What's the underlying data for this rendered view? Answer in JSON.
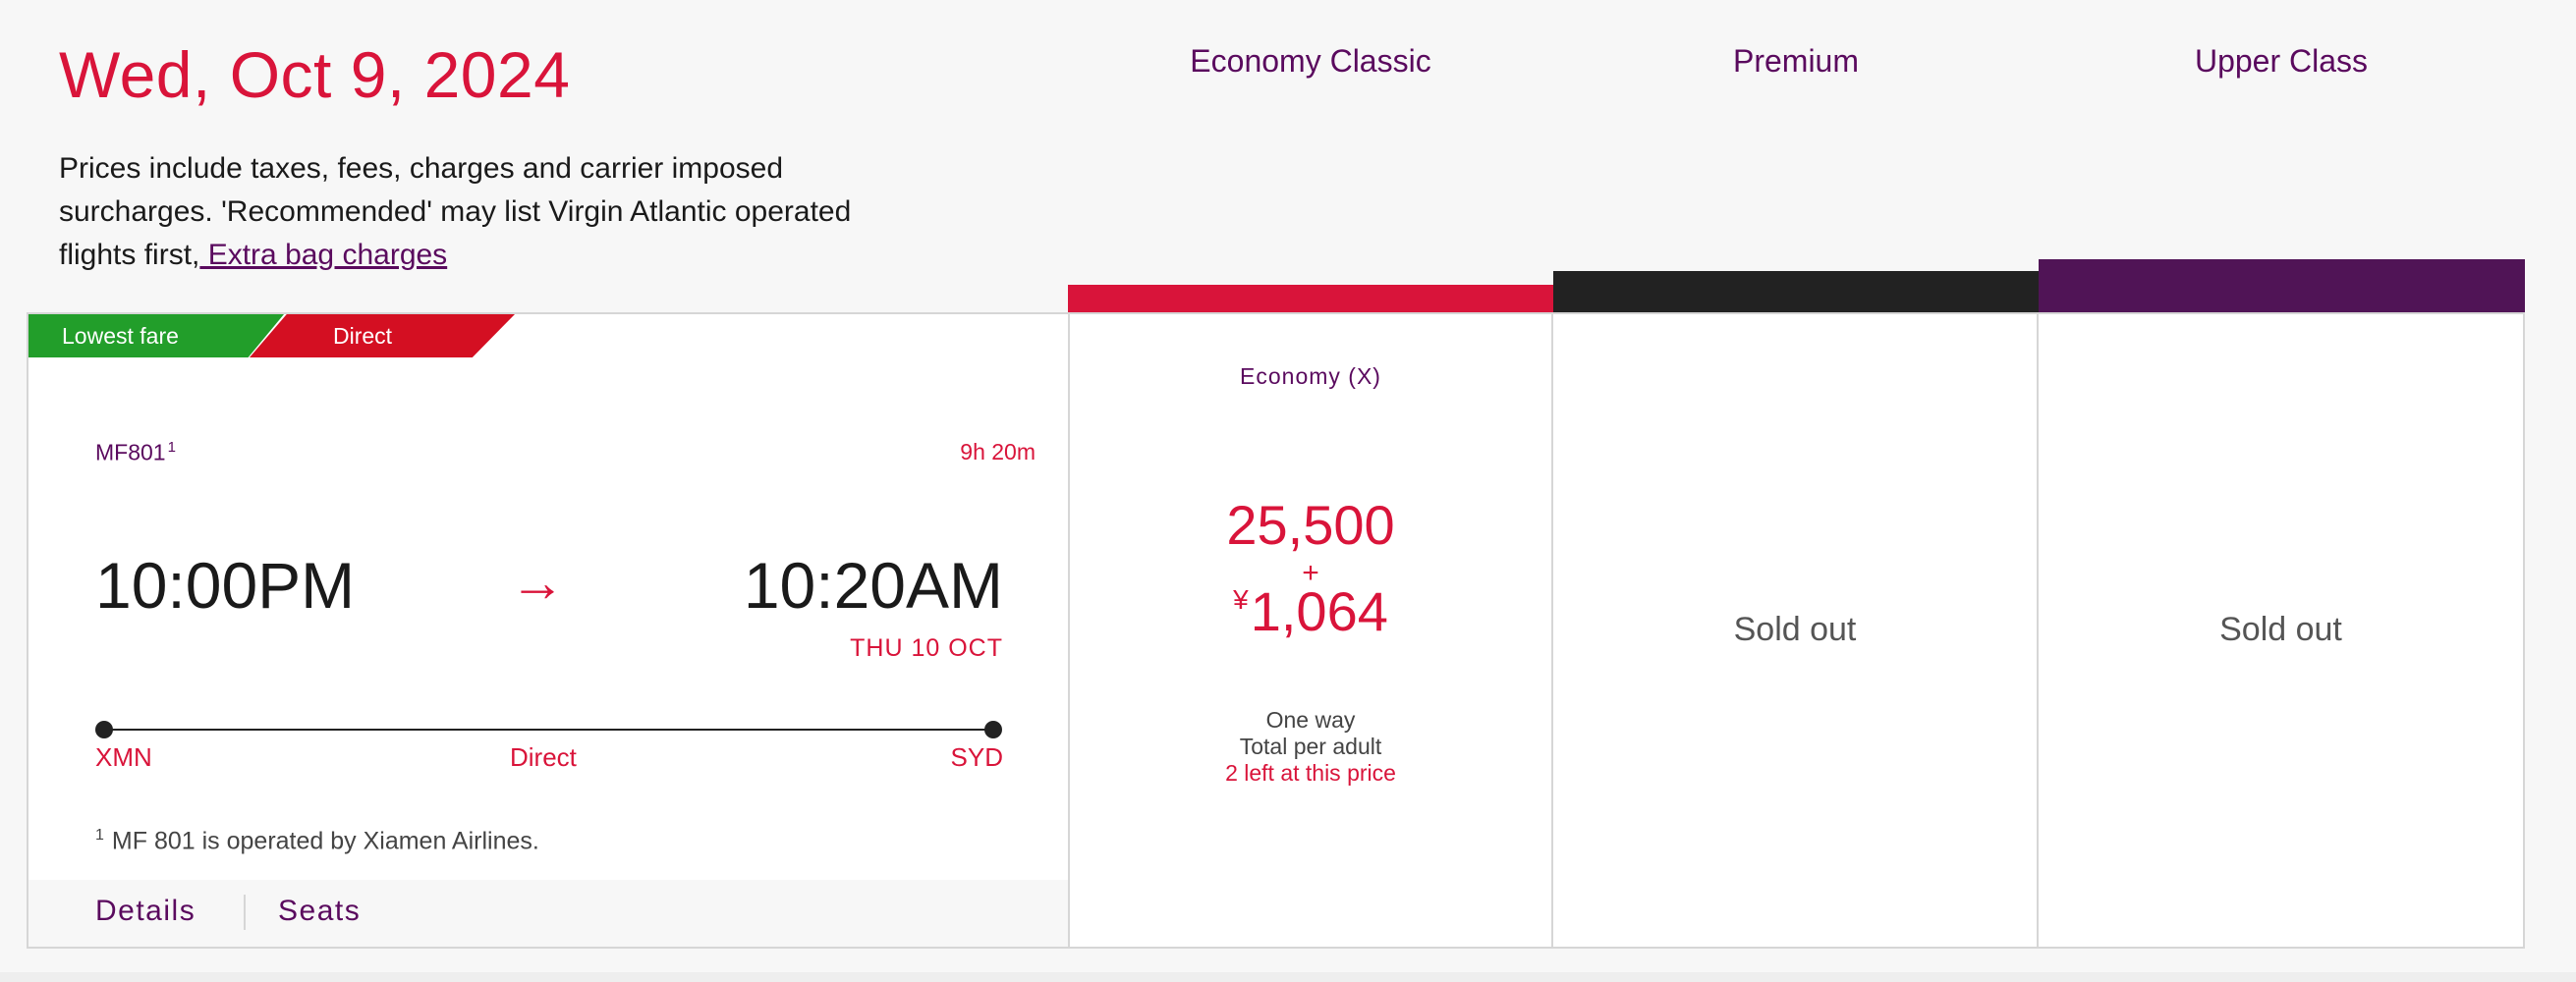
{
  "header": {
    "date": "Wed, Oct 9, 2024",
    "disclaimer_line1": "Prices include taxes, fees, charges and carrier imposed",
    "disclaimer_line2": "surcharges. 'Recommended' may list Virgin Atlantic operated",
    "disclaimer_line3": "flights first,",
    "extra_bag_link": " Extra bag charges"
  },
  "cabins": [
    {
      "name": "Economy Classic",
      "color": "#d9143a"
    },
    {
      "name": "Premium",
      "color": "#222222"
    },
    {
      "name": "Upper Class",
      "color": "#501456"
    }
  ],
  "flight": {
    "tags": [
      "Lowest fare",
      "Direct"
    ],
    "number": "MF801",
    "footnote_marker": "1",
    "duration": "9h 20m",
    "departure_time": "10:00PM",
    "arrow": "→",
    "arrival_time": "10:20AM",
    "arrival_date": "THU 10 OCT",
    "origin": "XMN",
    "stops": "Direct",
    "destination": "SYD",
    "operated_note": "MF 801 is operated by Xiamen Airlines.",
    "details_label": "Details",
    "seats_label": "Seats"
  },
  "fares": {
    "economy": {
      "class_label": "Economy (X)",
      "points": "25,500",
      "plus": "+",
      "currency": "¥",
      "cash": "1,064",
      "trip_type": "One way",
      "price_basis": "Total per adult",
      "availability": "2 left at this price"
    },
    "premium": {
      "status": "Sold out"
    },
    "upper": {
      "status": "Sold out"
    }
  }
}
